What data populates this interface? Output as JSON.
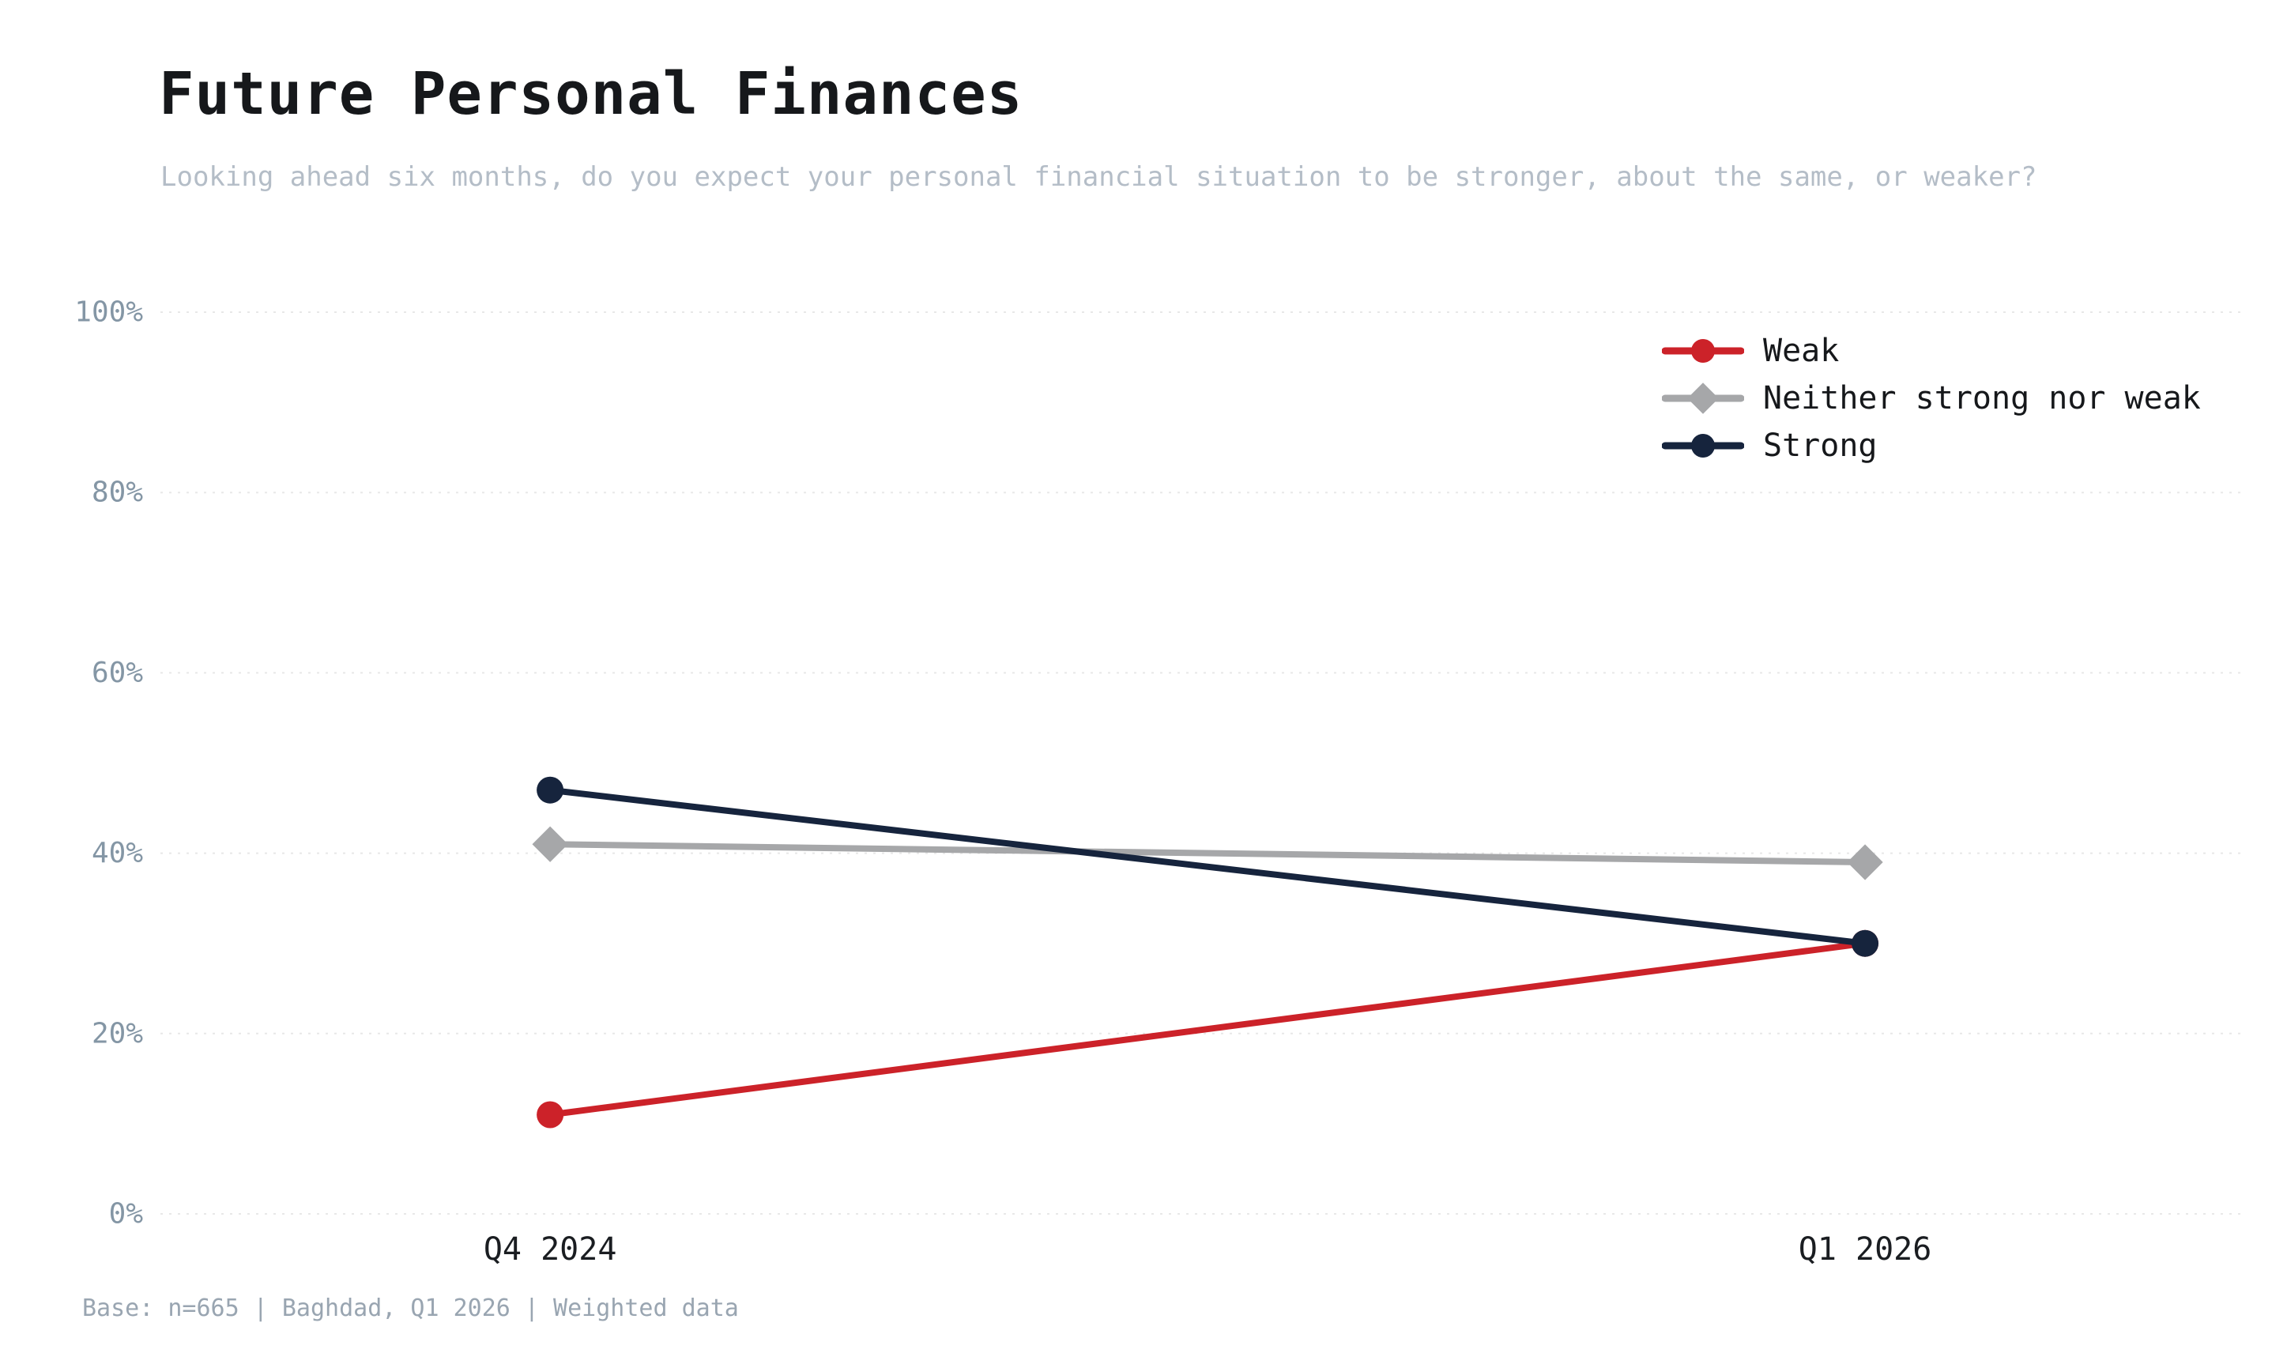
{
  "chart_data": {
    "type": "line",
    "title": "Future Personal Finances",
    "subtitle": "Looking ahead six months, do you expect your personal financial situation to be stronger, about the same, or weaker?",
    "footnote": "Base: n=665 | Baghdad, Q1 2026 | Weighted data",
    "categories": [
      "Q4 2024",
      "Q1 2026"
    ],
    "series": [
      {
        "name": "Weak",
        "color": "#cc2229",
        "marker": "circle",
        "values": [
          11,
          30
        ]
      },
      {
        "name": "Neither strong nor weak",
        "color": "#a6a7a9",
        "marker": "diamond",
        "values": [
          41,
          39
        ]
      },
      {
        "name": "Strong",
        "color": "#16243d",
        "marker": "circle",
        "values": [
          47,
          30
        ]
      }
    ],
    "ylim": [
      0,
      100
    ],
    "yticks": [
      0,
      20,
      40,
      60,
      80,
      100
    ],
    "ytick_suffix": "%",
    "grid": "horizontal-dashed",
    "legend_position": "top-right",
    "colors": {
      "grid_line": "#e8e8e8",
      "y_tick_label": "#8496a5",
      "x_tick_label": "#1a1d21",
      "subtitle_text": "#b4bdc7",
      "footnote_text": "#99a5b1"
    }
  }
}
